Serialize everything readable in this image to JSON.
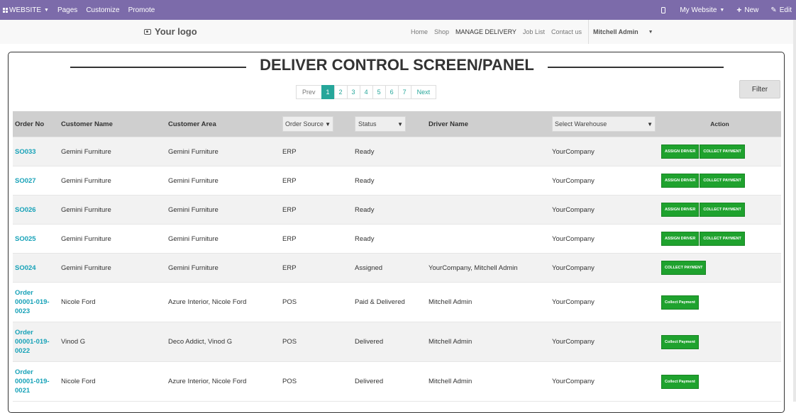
{
  "admin_bar": {
    "website_label": "WEBSITE",
    "pages_label": "Pages",
    "customize_label": "Customize",
    "promote_label": "Promote",
    "my_website_label": "My Website",
    "new_label": "New",
    "edit_label": "Edit"
  },
  "navbar": {
    "logo_text": "Your logo",
    "menu": [
      "Home",
      "Shop",
      "MANAGE DELIVERY",
      "Job List",
      "Contact us"
    ],
    "user": "Mitchell Admin"
  },
  "panel": {
    "title": "DELIVER CONTROL SCREEN/PANEL",
    "filter_label": "Filter",
    "pagination": {
      "prev": "Prev",
      "pages": [
        "1",
        "2",
        "3",
        "4",
        "5",
        "6",
        "7"
      ],
      "next": "Next",
      "active": "1"
    }
  },
  "table": {
    "headers": {
      "order_no": "Order No",
      "customer_name": "Customer Name",
      "customer_area": "Customer Area",
      "order_source": "Order Source",
      "status": "Status",
      "driver_name": "Driver Name",
      "warehouse": "Select Warehouse",
      "action": "Action"
    },
    "rows": [
      {
        "order": "SO033",
        "customer": "Gemini Furniture",
        "area": "Gemini Furniture",
        "source": "ERP",
        "status": "Ready",
        "driver": "",
        "warehouse": "YourCompany",
        "actions": [
          "ASSIGN DRIVER",
          "COLLECT PAYMENT"
        ]
      },
      {
        "order": "SO027",
        "customer": "Gemini Furniture",
        "area": "Gemini Furniture",
        "source": "ERP",
        "status": "Ready",
        "driver": "",
        "warehouse": "YourCompany",
        "actions": [
          "ASSIGN DRIVER",
          "COLLECT PAYMENT"
        ]
      },
      {
        "order": "SO026",
        "customer": "Gemini Furniture",
        "area": "Gemini Furniture",
        "source": "ERP",
        "status": "Ready",
        "driver": "",
        "warehouse": "YourCompany",
        "actions": [
          "ASSIGN DRIVER",
          "COLLECT PAYMENT"
        ]
      },
      {
        "order": "SO025",
        "customer": "Gemini Furniture",
        "area": "Gemini Furniture",
        "source": "ERP",
        "status": "Ready",
        "driver": "",
        "warehouse": "YourCompany",
        "actions": [
          "ASSIGN DRIVER",
          "COLLECT PAYMENT"
        ]
      },
      {
        "order": "SO024",
        "customer": "Gemini Furniture",
        "area": "Gemini Furniture",
        "source": "ERP",
        "status": "Assigned",
        "driver": "YourCompany, Mitchell Admin",
        "warehouse": "YourCompany",
        "actions": [
          "COLLECT PAYMENT"
        ]
      },
      {
        "order": "Order 00001-019-0023",
        "customer": "Nicole Ford",
        "area": "Azure Interior, Nicole Ford",
        "source": "POS",
        "status": "Paid & Delivered",
        "driver": "Mitchell Admin",
        "warehouse": "YourCompany",
        "actions": [
          "Collect Payment"
        ]
      },
      {
        "order": "Order 00001-019-0022",
        "customer": "Vinod G",
        "area": "Deco Addict, Vinod G",
        "source": "POS",
        "status": "Delivered",
        "driver": "Mitchell Admin",
        "warehouse": "YourCompany",
        "actions": [
          "Collect Payment"
        ]
      },
      {
        "order": "Order 00001-019-0021",
        "customer": "Nicole Ford",
        "area": "Azure Interior, Nicole Ford",
        "source": "POS",
        "status": "Delivered",
        "driver": "Mitchell Admin",
        "warehouse": "YourCompany",
        "actions": [
          "Collect Payment"
        ]
      }
    ]
  },
  "colors": {
    "admin_bar": "#7c6baa",
    "accent": "#26a69a",
    "order_link": "#17a2b8",
    "action_button": "#1fa22e",
    "header_row": "#cfcfcf"
  }
}
